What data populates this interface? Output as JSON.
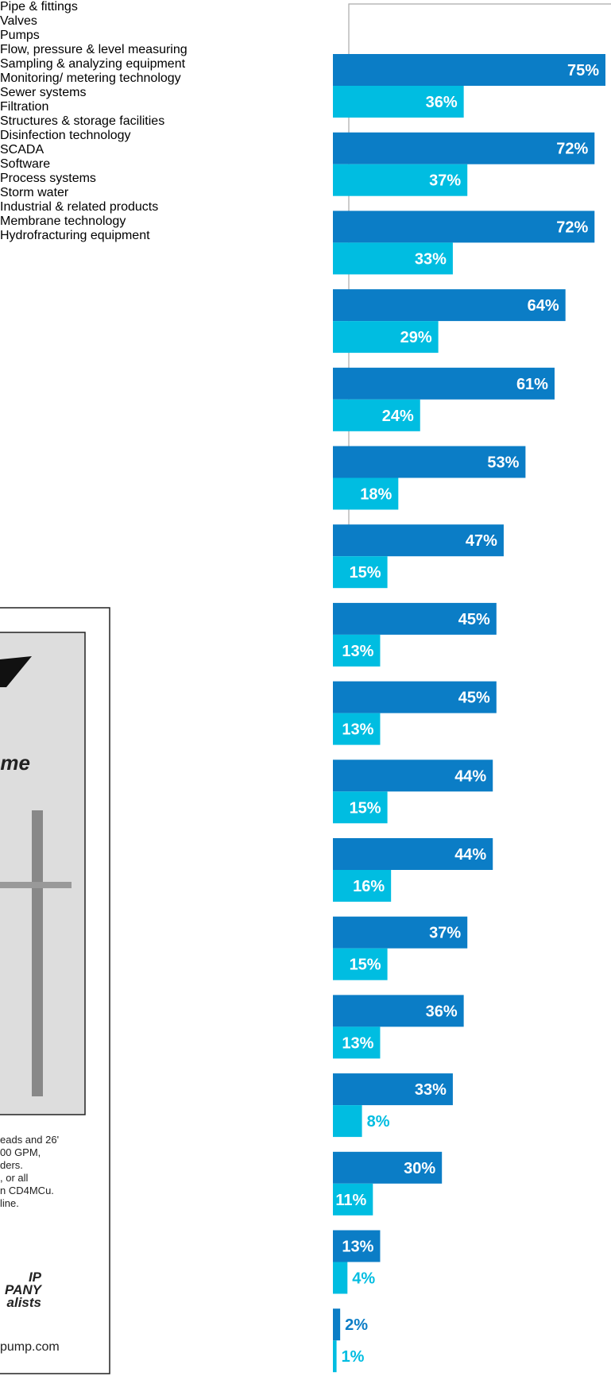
{
  "chart_data": {
    "type": "grouped-horizontal-bar",
    "categories": [
      "Pipe & fittings",
      "Valves",
      "Pumps",
      "Flow, pressure & level measuring",
      "Sampling & analyzing equipment",
      "Monitoring/ metering technology",
      "Sewer systems",
      "Filtration",
      "Structures &\nstorage facilities",
      "Disinfection\ntechnology",
      "SCADA",
      "Software",
      "Process systems",
      "Storm water",
      "Industrial &\nrelated products",
      "Membrane\ntechnology",
      "Hydrofracturing\nequipment"
    ],
    "series": [
      {
        "color": "#0b7dc6",
        "values": [
          75,
          72,
          72,
          64,
          61,
          53,
          47,
          45,
          45,
          44,
          44,
          37,
          36,
          33,
          30,
          13,
          2
        ],
        "value_labels": [
          "75%",
          "72%",
          "72%",
          "64%",
          "61%",
          "53%",
          "47%",
          "45%",
          "45%",
          "44%",
          "44%",
          "37%",
          "36%",
          "33%",
          "30%",
          "13%",
          "2%"
        ]
      },
      {
        "color": "#00bde1",
        "values": [
          36,
          37,
          33,
          29,
          24,
          18,
          15,
          13,
          13,
          15,
          16,
          15,
          13,
          8,
          11,
          4,
          1
        ],
        "value_labels": [
          "36%",
          "37%",
          "33%",
          "29%",
          "24%",
          "18%",
          "15%",
          "13%",
          "13%",
          "15%",
          "16%",
          "15%",
          "13%",
          "8%",
          "11%",
          "4%",
          "1%"
        ]
      }
    ],
    "xlim": [
      0,
      75
    ]
  },
  "ad": {
    "headline": "me",
    "lines": [
      "eads and 26'",
      "00 GPM,",
      "ders.",
      ", or all",
      "n CD4MCu.",
      "line."
    ],
    "logo": [
      "IP",
      "PANY",
      "alists"
    ],
    "url": "pump.com"
  }
}
